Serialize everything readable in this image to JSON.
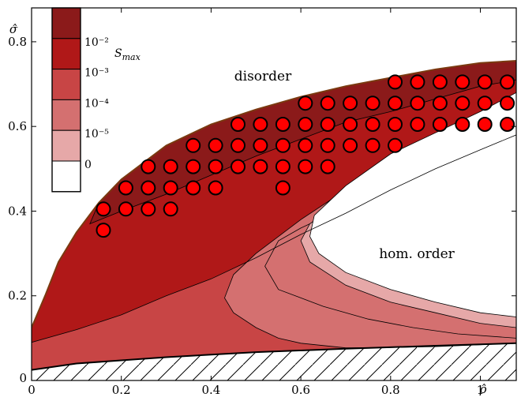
{
  "chart_data": {
    "type": "contour",
    "xlabel": "ρ̂",
    "ylabel": "σ̂",
    "xlim": [
      0,
      1.08
    ],
    "ylim": [
      0,
      0.88
    ],
    "x_ticks": [
      {
        "value": 0,
        "label": "0"
      },
      {
        "value": 0.2,
        "label": "0.2"
      },
      {
        "value": 0.4,
        "label": "0.4"
      },
      {
        "value": 0.6,
        "label": "0.6"
      },
      {
        "value": 0.8,
        "label": "0.8"
      },
      {
        "value": 1,
        "label": "1"
      }
    ],
    "y_ticks": [
      {
        "value": 0.2,
        "label": "0.2"
      },
      {
        "value": 0.4,
        "label": "0.4"
      },
      {
        "value": 0.6,
        "label": "0.6"
      },
      {
        "value": 0.8,
        "label": "0.8"
      }
    ],
    "legend": {
      "title": "S_max",
      "placement": "top-left",
      "levels": [
        {
          "label": "",
          "color": "#8b1a1a"
        },
        {
          "label": "10⁻²",
          "color": "#b01818"
        },
        {
          "label": "10⁻³",
          "color": "#c84545"
        },
        {
          "label": "10⁻⁴",
          "color": "#d47070"
        },
        {
          "label": "10⁻⁵",
          "color": "#e6a8a8"
        },
        {
          "label": "0",
          "color": "#ffffff"
        }
      ]
    },
    "annotations": [
      {
        "text": "disorder",
        "x": 0.54,
        "y": 0.79
      },
      {
        "text": "hom. order",
        "x": 0.88,
        "y": 0.32
      }
    ],
    "regions": {
      "upper_boundary": [
        [
          0.0,
          0.125
        ],
        [
          0.03,
          0.2
        ],
        [
          0.06,
          0.28
        ],
        [
          0.1,
          0.35
        ],
        [
          0.15,
          0.42
        ],
        [
          0.2,
          0.475
        ],
        [
          0.3,
          0.555
        ],
        [
          0.4,
          0.605
        ],
        [
          0.5,
          0.64
        ],
        [
          0.6,
          0.67
        ],
        [
          0.7,
          0.695
        ],
        [
          0.8,
          0.715
        ],
        [
          0.9,
          0.735
        ],
        [
          1.0,
          0.75
        ],
        [
          1.08,
          0.755
        ]
      ],
      "lower_boundary": [
        [
          0.0,
          0.025
        ],
        [
          0.1,
          0.04
        ],
        [
          0.3,
          0.055
        ],
        [
          0.5,
          0.067
        ],
        [
          0.7,
          0.075
        ],
        [
          0.9,
          0.082
        ],
        [
          1.08,
          0.088
        ]
      ],
      "inner_boundary_top": [
        [
          1.08,
          0.68
        ],
        [
          1.0,
          0.635
        ],
        [
          0.9,
          0.585
        ],
        [
          0.8,
          0.535
        ],
        [
          0.7,
          0.46
        ],
        [
          0.63,
          0.39
        ],
        [
          0.62,
          0.34
        ]
      ],
      "inner_boundary_bottom": [
        [
          0.62,
          0.34
        ],
        [
          0.64,
          0.3
        ],
        [
          0.7,
          0.255
        ],
        [
          0.8,
          0.215
        ],
        [
          0.9,
          0.185
        ],
        [
          1.0,
          0.16
        ],
        [
          1.08,
          0.15
        ]
      ],
      "contour_1e-5_top": [
        [
          1.08,
          0.66
        ],
        [
          1.0,
          0.61
        ],
        [
          0.9,
          0.555
        ],
        [
          0.8,
          0.505
        ],
        [
          0.7,
          0.43
        ],
        [
          0.62,
          0.37
        ],
        [
          0.6,
          0.33
        ]
      ],
      "contour_1e-5_bottom": [
        [
          0.6,
          0.33
        ],
        [
          0.62,
          0.28
        ],
        [
          0.7,
          0.225
        ],
        [
          0.8,
          0.185
        ],
        [
          0.9,
          0.16
        ],
        [
          1.0,
          0.135
        ],
        [
          1.08,
          0.125
        ]
      ],
      "contour_1e-4_top": [
        [
          1.08,
          0.645
        ],
        [
          1.0,
          0.6
        ],
        [
          0.9,
          0.545
        ],
        [
          0.8,
          0.49
        ],
        [
          0.7,
          0.41
        ],
        [
          0.6,
          0.36
        ],
        [
          0.55,
          0.33
        ],
        [
          0.52,
          0.27
        ]
      ],
      "contour_1e-4_bottom": [
        [
          0.52,
          0.27
        ],
        [
          0.55,
          0.215
        ],
        [
          0.65,
          0.175
        ],
        [
          0.75,
          0.145
        ],
        [
          0.85,
          0.125
        ],
        [
          0.95,
          0.11
        ],
        [
          1.08,
          0.1
        ]
      ],
      "contour_1e-3_top": [
        [
          1.08,
          0.67
        ],
        [
          1.0,
          0.63
        ],
        [
          0.9,
          0.58
        ],
        [
          0.8,
          0.52
        ],
        [
          0.7,
          0.45
        ],
        [
          0.6,
          0.38
        ],
        [
          0.5,
          0.3
        ],
        [
          0.45,
          0.25
        ],
        [
          0.43,
          0.195
        ]
      ],
      "contour_1e-3_bottom": [
        [
          0.43,
          0.195
        ],
        [
          0.45,
          0.16
        ],
        [
          0.5,
          0.125
        ],
        [
          0.55,
          0.1
        ],
        [
          0.6,
          0.088
        ],
        [
          0.7,
          0.077
        ],
        [
          0.8,
          0.078
        ],
        [
          0.9,
          0.08
        ],
        [
          1.08,
          0.088
        ]
      ],
      "contour_1e-2": [
        [
          0.0,
          0.09
        ],
        [
          0.1,
          0.12
        ],
        [
          0.2,
          0.155
        ],
        [
          0.3,
          0.2
        ],
        [
          0.4,
          0.24
        ],
        [
          0.5,
          0.29
        ],
        [
          0.6,
          0.345
        ],
        [
          0.7,
          0.395
        ],
        [
          0.8,
          0.45
        ],
        [
          0.9,
          0.5
        ],
        [
          1.0,
          0.545
        ],
        [
          1.08,
          0.58
        ]
      ],
      "contour_darkest": [
        [
          0.13,
          0.37
        ],
        [
          0.2,
          0.4
        ],
        [
          0.3,
          0.44
        ],
        [
          0.4,
          0.485
        ],
        [
          0.5,
          0.53
        ],
        [
          0.6,
          0.57
        ],
        [
          0.7,
          0.61
        ],
        [
          0.8,
          0.635
        ],
        [
          0.9,
          0.665
        ],
        [
          1.0,
          0.695
        ],
        [
          1.08,
          0.71
        ]
      ]
    },
    "points": [
      [
        0.81,
        0.705
      ],
      [
        0.86,
        0.705
      ],
      [
        0.91,
        0.705
      ],
      [
        0.96,
        0.705
      ],
      [
        1.01,
        0.705
      ],
      [
        1.06,
        0.705
      ],
      [
        1.11,
        0.705
      ],
      [
        0.61,
        0.655
      ],
      [
        0.66,
        0.655
      ],
      [
        0.71,
        0.655
      ],
      [
        0.76,
        0.655
      ],
      [
        0.81,
        0.655
      ],
      [
        0.86,
        0.655
      ],
      [
        0.91,
        0.655
      ],
      [
        0.96,
        0.655
      ],
      [
        1.01,
        0.655
      ],
      [
        1.06,
        0.655
      ],
      [
        1.11,
        0.655
      ],
      [
        0.46,
        0.605
      ],
      [
        0.51,
        0.605
      ],
      [
        0.56,
        0.605
      ],
      [
        0.61,
        0.605
      ],
      [
        0.66,
        0.605
      ],
      [
        0.71,
        0.605
      ],
      [
        0.76,
        0.605
      ],
      [
        0.81,
        0.605
      ],
      [
        0.86,
        0.605
      ],
      [
        0.91,
        0.605
      ],
      [
        0.96,
        0.605
      ],
      [
        1.01,
        0.605
      ],
      [
        1.06,
        0.605
      ],
      [
        0.36,
        0.555
      ],
      [
        0.41,
        0.555
      ],
      [
        0.46,
        0.555
      ],
      [
        0.51,
        0.555
      ],
      [
        0.56,
        0.555
      ],
      [
        0.61,
        0.555
      ],
      [
        0.66,
        0.555
      ],
      [
        0.71,
        0.555
      ],
      [
        0.76,
        0.555
      ],
      [
        0.81,
        0.555
      ],
      [
        0.26,
        0.505
      ],
      [
        0.31,
        0.505
      ],
      [
        0.36,
        0.505
      ],
      [
        0.41,
        0.505
      ],
      [
        0.46,
        0.505
      ],
      [
        0.51,
        0.505
      ],
      [
        0.56,
        0.505
      ],
      [
        0.61,
        0.505
      ],
      [
        0.66,
        0.505
      ],
      [
        0.21,
        0.455
      ],
      [
        0.26,
        0.455
      ],
      [
        0.31,
        0.455
      ],
      [
        0.36,
        0.455
      ],
      [
        0.41,
        0.455
      ],
      [
        0.56,
        0.455
      ],
      [
        0.16,
        0.405
      ],
      [
        0.21,
        0.405
      ],
      [
        0.26,
        0.405
      ],
      [
        0.31,
        0.405
      ],
      [
        0.16,
        0.355
      ]
    ]
  }
}
